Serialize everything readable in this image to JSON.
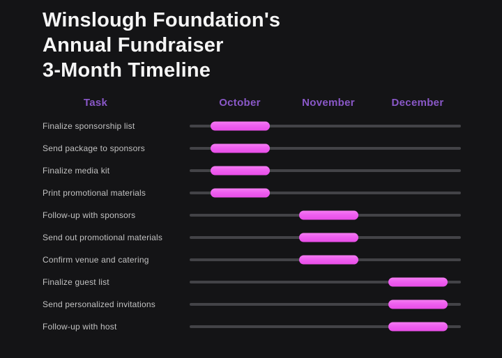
{
  "title": {
    "lines": [
      "Winslough Foundation's",
      "Annual Fundraiser",
      "3-Month Timeline"
    ]
  },
  "chart_data": {
    "type": "bar",
    "subtype": "gantt",
    "title": "Winslough Foundation's Annual Fundraiser 3-Month Timeline",
    "columns": [
      "Task",
      "October",
      "November",
      "December"
    ],
    "months": [
      "October",
      "November",
      "December"
    ],
    "legend": "none",
    "grid": "off",
    "tasks": [
      {
        "label": "Finalize sponsorship list",
        "month": "October"
      },
      {
        "label": "Send package to sponsors",
        "month": "October"
      },
      {
        "label": "Finalize media kit",
        "month": "October"
      },
      {
        "label": "Print promotional materials",
        "month": "October"
      },
      {
        "label": "Follow-up with sponsors",
        "month": "November"
      },
      {
        "label": "Send out promotional materials",
        "month": "November"
      },
      {
        "label": "Confirm venue and catering",
        "month": "November"
      },
      {
        "label": "Finalize guest list",
        "month": "December"
      },
      {
        "label": "Send personalized invitations",
        "month": "December"
      },
      {
        "label": "Follow-up with host",
        "month": "December"
      }
    ]
  },
  "colors": {
    "background": "#141416",
    "title": "#f5f5f5",
    "header": "#8a58c8",
    "task_label": "#c2c2c2",
    "track": "#434347",
    "bar": "#ee5ff0"
  }
}
